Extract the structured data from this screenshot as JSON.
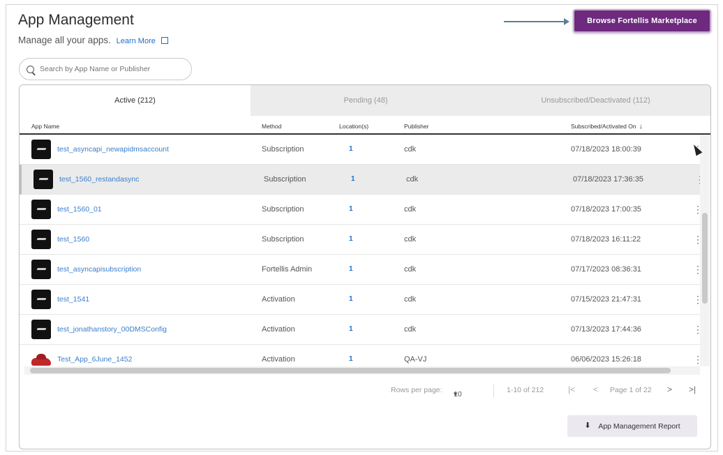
{
  "header": {
    "title": "App Management",
    "subtitle": "Manage all your apps.",
    "learn_more": "Learn More",
    "browse_button": "Browse Fortellis Marketplace"
  },
  "search": {
    "placeholder": "Search by App Name or Publisher"
  },
  "tabs": [
    {
      "label": "Active (212)",
      "active": true
    },
    {
      "label": "Pending (48)",
      "active": false
    },
    {
      "label": "Unsubscribed/Deactivated (112)",
      "active": false
    }
  ],
  "columns": {
    "app_name": "App Name",
    "method": "Method",
    "locations": "Location(s)",
    "publisher": "Publisher",
    "date": "Subscribed/Activated On",
    "sort_icon": "arrow-down-icon"
  },
  "rows": [
    {
      "name": "test_asyncapi_newapidmsaccount",
      "method": "Subscription",
      "locations": "1",
      "publisher": "cdk",
      "date": "07/18/2023 18:00:39",
      "icon": "app-thumbnail"
    },
    {
      "name": "test_1560_restandasync",
      "method": "Subscription",
      "locations": "1",
      "publisher": "cdk",
      "date": "07/18/2023 17:36:35",
      "icon": "app-thumbnail"
    },
    {
      "name": "test_1560_01",
      "method": "Subscription",
      "locations": "1",
      "publisher": "cdk",
      "date": "07/18/2023 17:00:35",
      "icon": "app-thumbnail"
    },
    {
      "name": "test_1560",
      "method": "Subscription",
      "locations": "1",
      "publisher": "cdk",
      "date": "07/18/2023 16:11:22",
      "icon": "app-thumbnail"
    },
    {
      "name": "test_asyncapisubscription",
      "method": "Fortellis Admin",
      "locations": "1",
      "publisher": "cdk",
      "date": "07/17/2023 08:36:31",
      "icon": "app-thumbnail"
    },
    {
      "name": "test_1541",
      "method": "Activation",
      "locations": "1",
      "publisher": "cdk",
      "date": "07/15/2023 21:47:31",
      "icon": "app-thumbnail"
    },
    {
      "name": "test_jonathanstory_00DMSConfig",
      "method": "Activation",
      "locations": "1",
      "publisher": "cdk",
      "date": "07/13/2023 17:44:36",
      "icon": "app-thumbnail"
    },
    {
      "name": "Test_App_6June_1452",
      "method": "Activation",
      "locations": "1",
      "publisher": "QA-VJ",
      "date": "06/06/2023 15:26:18",
      "icon": "car-thumbnail"
    }
  ],
  "pagination": {
    "rows_label": "Rows per page:",
    "rows_value": "10",
    "range": "1-10 of 212",
    "page": "Page 1 of 22"
  },
  "report_button": "App Management Report"
}
